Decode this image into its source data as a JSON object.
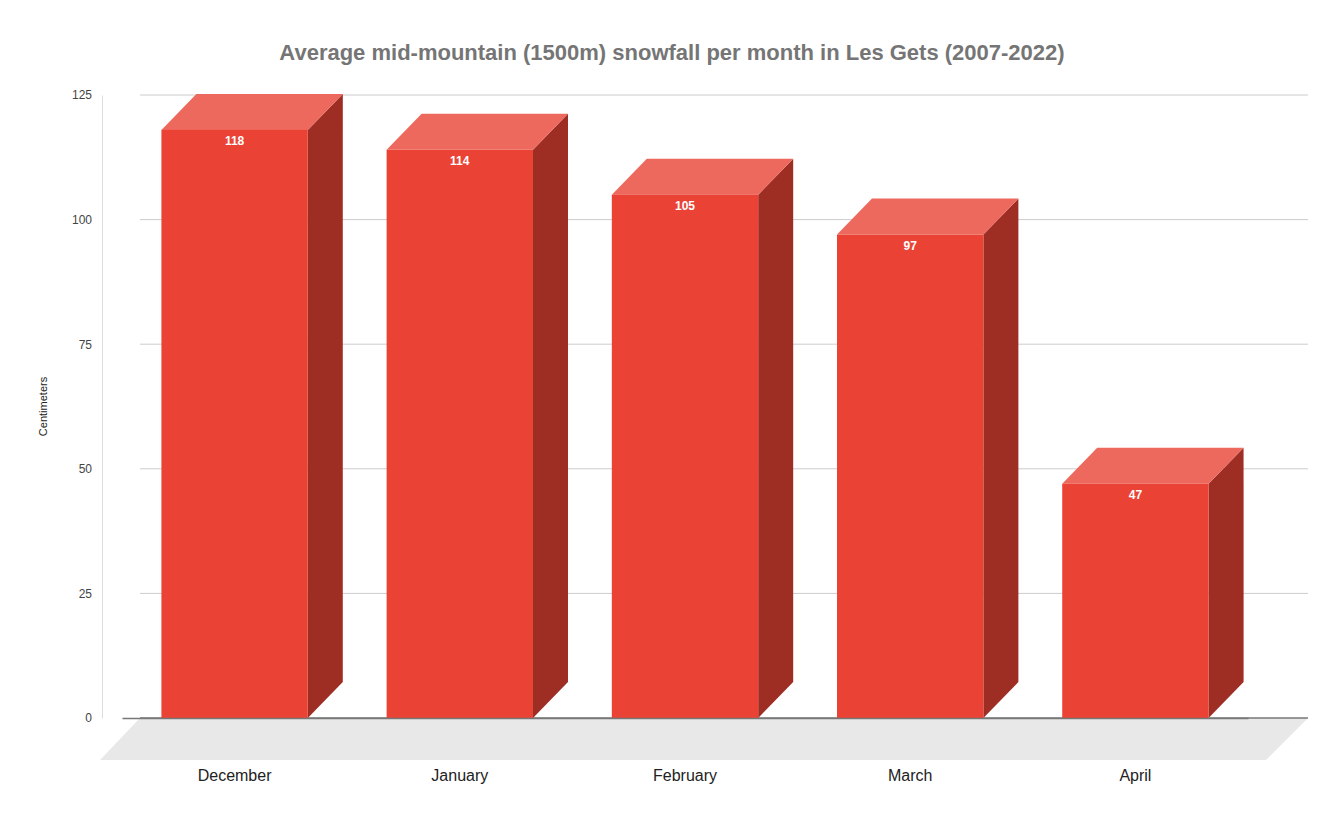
{
  "chart_data": {
    "type": "bar",
    "title": "Average mid-mountain (1500m) snowfall per month in Les Gets (2007-2022)",
    "y_label": "Centimeters",
    "categories": [
      "December",
      "January",
      "February",
      "March",
      "April"
    ],
    "values": [
      118,
      114,
      105,
      97,
      47
    ],
    "color": "#ea4335",
    "ylim": [
      0,
      125
    ],
    "yticks": [
      0,
      25,
      50,
      75,
      100,
      125
    ],
    "grid": true,
    "data_labels": true
  }
}
